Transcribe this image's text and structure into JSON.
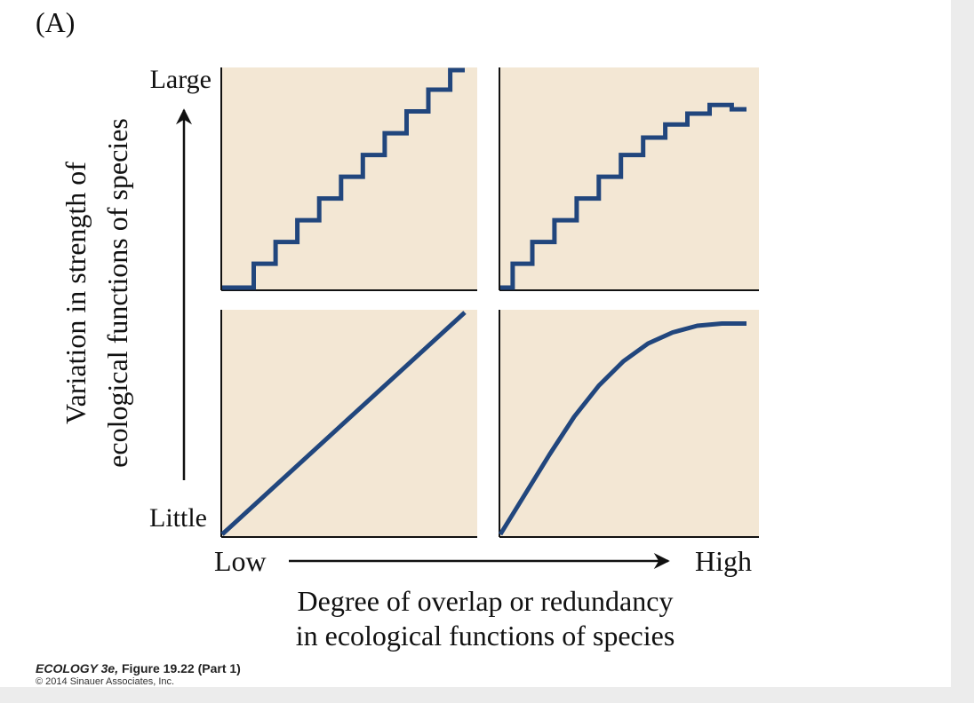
{
  "panel_label": "(A)",
  "caption": {
    "title_italic": "ECOLOGY 3e,",
    "title_rest": " Figure 19.22 (Part 1)",
    "copyright": "© 2014 Sinauer Associates, Inc."
  },
  "colors": {
    "panel_fill": "#f3e7d4",
    "line": "#21467d",
    "axis": "#111111",
    "text": "#111111"
  },
  "chart_data": {
    "type": "line",
    "layout": "2x2 grid of small multiples",
    "y_axis": {
      "label_line1": "Variation in strength of",
      "label_line2": "ecological functions of species",
      "top_label": "Large",
      "bottom_label": "Little"
    },
    "x_axis": {
      "left_label": "Low",
      "right_label": "High",
      "title_line1": "Degree of overlap or redundancy",
      "title_line2": "in ecological functions of species"
    },
    "x_range": [
      0,
      1
    ],
    "y_range": [
      0,
      1
    ],
    "panels": [
      {
        "position": "top-left",
        "kind": "linear staircase",
        "series": [
          {
            "x": [
              0,
              0.13,
              0.13,
              0.22,
              0.22,
              0.31,
              0.31,
              0.4,
              0.4,
              0.49,
              0.49,
              0.58,
              0.58,
              0.67,
              0.67,
              0.76,
              0.76,
              0.85,
              0.85,
              0.94,
              0.94,
              1.0
            ],
            "y": [
              0,
              0,
              0.11,
              0.11,
              0.21,
              0.21,
              0.31,
              0.31,
              0.41,
              0.41,
              0.51,
              0.51,
              0.61,
              0.61,
              0.71,
              0.71,
              0.81,
              0.81,
              0.91,
              0.91,
              1.0,
              1.0
            ]
          }
        ]
      },
      {
        "position": "top-right",
        "kind": "saturating staircase",
        "series": [
          {
            "x": [
              0,
              0.05,
              0.05,
              0.13,
              0.13,
              0.22,
              0.22,
              0.31,
              0.31,
              0.4,
              0.4,
              0.49,
              0.49,
              0.58,
              0.58,
              0.67,
              0.67,
              0.76,
              0.76,
              0.85,
              0.85,
              0.94,
              0.94,
              1.0
            ],
            "y": [
              0,
              0,
              0.11,
              0.11,
              0.21,
              0.21,
              0.31,
              0.31,
              0.41,
              0.41,
              0.51,
              0.51,
              0.61,
              0.61,
              0.69,
              0.69,
              0.75,
              0.75,
              0.8,
              0.8,
              0.84,
              0.84,
              0.82,
              0.82
            ]
          }
        ]
      },
      {
        "position": "bottom-left",
        "kind": "linear",
        "series": [
          {
            "x": [
              0,
              1.0
            ],
            "y": [
              0,
              1.0
            ]
          }
        ]
      },
      {
        "position": "bottom-right",
        "kind": "saturating curve",
        "series": [
          {
            "x": [
              0,
              0.1,
              0.2,
              0.3,
              0.4,
              0.5,
              0.6,
              0.7,
              0.8,
              0.9,
              1.0
            ],
            "y": [
              0,
              0.18,
              0.36,
              0.53,
              0.67,
              0.78,
              0.86,
              0.91,
              0.94,
              0.95,
              0.95
            ]
          }
        ]
      }
    ]
  }
}
